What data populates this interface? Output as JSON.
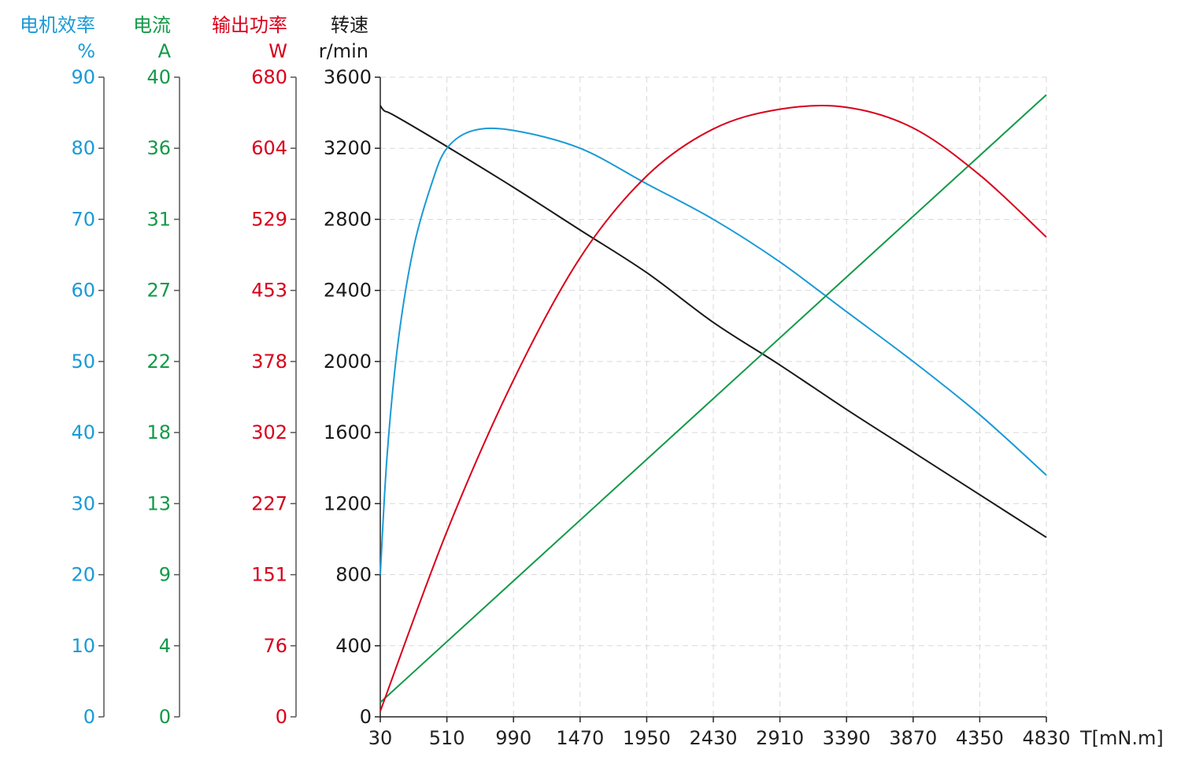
{
  "chart_data": {
    "type": "line",
    "xlabel": "T[mN.m]",
    "x_ticks": [
      "30",
      "510",
      "990",
      "1470",
      "1950",
      "2430",
      "2910",
      "3390",
      "3870",
      "4350",
      "4830"
    ],
    "xlim": [
      30,
      4830
    ],
    "grid": true,
    "axes": [
      {
        "id": "efficiency",
        "title": "电机效率",
        "unit": "%",
        "color": "#1a9ad6",
        "ticks": [
          "0",
          "10",
          "20",
          "30",
          "40",
          "50",
          "60",
          "70",
          "80",
          "90"
        ],
        "ylim": [
          0,
          90
        ]
      },
      {
        "id": "current",
        "title": "电流",
        "unit": "A",
        "color": "#129a48",
        "ticks": [
          "0",
          "4",
          "9",
          "13",
          "18",
          "22",
          "27",
          "31",
          "36",
          "40"
        ],
        "ylim": [
          0,
          40
        ]
      },
      {
        "id": "power",
        "title": "输出功率",
        "unit": "W",
        "color": "#d9001b",
        "ticks": [
          "0",
          "76",
          "151",
          "227",
          "302",
          "378",
          "453",
          "529",
          "604",
          "680"
        ],
        "ylim": [
          0,
          680
        ]
      },
      {
        "id": "speed",
        "title": "转速",
        "unit": "r/min",
        "color": "#1a1a1a",
        "ticks": [
          "0",
          "400",
          "800",
          "1200",
          "1600",
          "2000",
          "2400",
          "2800",
          "3200",
          "3600"
        ],
        "ylim": [
          0,
          3600
        ]
      }
    ],
    "series": [
      {
        "axis": "speed",
        "color": "#1a1a1a",
        "x": [
          30,
          60,
          130,
          510,
          990,
          1470,
          1950,
          2430,
          2910,
          3390,
          3870,
          4350,
          4830
        ],
        "y": [
          3440,
          3410,
          3385,
          3210,
          2980,
          2740,
          2500,
          2220,
          1980,
          1730,
          1490,
          1250,
          1010
        ]
      },
      {
        "axis": "efficiency",
        "color": "#1a9ad6",
        "x": [
          30,
          80,
          160,
          270,
          400,
          510,
          700,
          990,
          1470,
          1950,
          2430,
          2910,
          3390,
          3870,
          4350,
          4830
        ],
        "y": [
          20,
          37,
          53,
          66,
          75,
          80,
          82.5,
          82.5,
          80,
          75,
          70,
          64,
          57,
          50,
          42.5,
          34
        ]
      },
      {
        "axis": "current",
        "color": "#129a48",
        "x": [
          30,
          4830
        ],
        "y": [
          0.9,
          38.9
        ]
      },
      {
        "axis": "power",
        "color": "#d9001b",
        "x": [
          30,
          510,
          990,
          1470,
          1950,
          2430,
          2910,
          3390,
          3870,
          4350,
          4830
        ],
        "y": [
          6,
          197,
          358,
          488,
          575,
          625,
          646,
          648,
          626,
          576,
          510
        ]
      }
    ]
  }
}
